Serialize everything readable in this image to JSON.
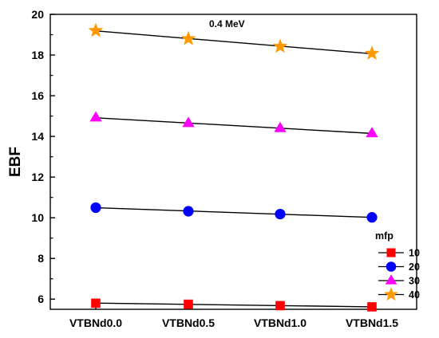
{
  "chart_data": {
    "type": "line",
    "annotation": "0.4 MeV",
    "xlabel": "",
    "ylabel": "EBF",
    "categories": [
      "VTBNd0.0",
      "VTBNd0.5",
      "VTBNd1.0",
      "VTBNd1.5"
    ],
    "ylim": [
      5.5,
      20
    ],
    "yticks": [
      6,
      8,
      10,
      12,
      14,
      16,
      18,
      20
    ],
    "grid": false,
    "legend": {
      "title": "mfp",
      "position": "bottom-right"
    },
    "series": [
      {
        "name": "10",
        "marker": "square",
        "color": "#ff0000",
        "values": [
          5.8,
          5.75,
          5.68,
          5.62
        ]
      },
      {
        "name": "20",
        "marker": "circle",
        "color": "#0000ff",
        "values": [
          10.5,
          10.32,
          10.18,
          10.02
        ]
      },
      {
        "name": "30",
        "marker": "triangle",
        "color": "#ff00ff",
        "values": [
          14.92,
          14.65,
          14.4,
          14.15
        ]
      },
      {
        "name": "40",
        "marker": "star",
        "color": "#ff9900",
        "values": [
          19.2,
          18.8,
          18.42,
          18.08
        ]
      }
    ]
  }
}
